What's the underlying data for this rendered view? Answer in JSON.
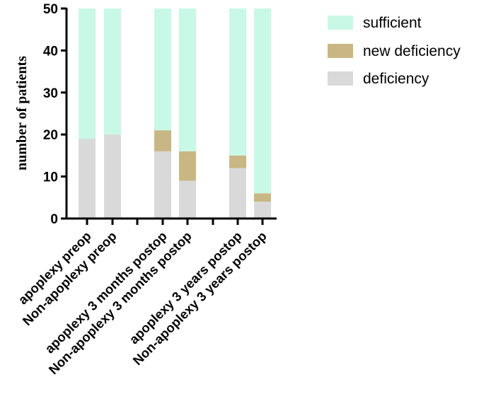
{
  "chart_data": {
    "type": "bar",
    "stacked": true,
    "title": "",
    "xlabel": "",
    "ylabel": "number of patients",
    "ylim": [
      0,
      50
    ],
    "yticks": [
      0,
      10,
      20,
      30,
      40,
      50
    ],
    "legend_position": "right",
    "categories": [
      "apoplexy preop",
      "Non-apoplexy preop",
      "apoplexy 3 months postop",
      "Non-apoplexy 3 months postop",
      "apoplexy 3 years postop",
      "Non-apoplexy 3 years postop"
    ],
    "series": [
      {
        "name": "deficiency",
        "color": "#d9d9d9",
        "values": [
          19,
          20,
          16,
          9,
          12,
          4
        ]
      },
      {
        "name": "new deficiency",
        "color": "#c8b784",
        "values": [
          0,
          0,
          5,
          7,
          3,
          2
        ]
      },
      {
        "name": "sufficient",
        "color": "#c9f8e6",
        "values": [
          31,
          30,
          29,
          34,
          35,
          44
        ]
      }
    ],
    "legend_order": [
      "sufficient",
      "new deficiency",
      "deficiency"
    ]
  }
}
